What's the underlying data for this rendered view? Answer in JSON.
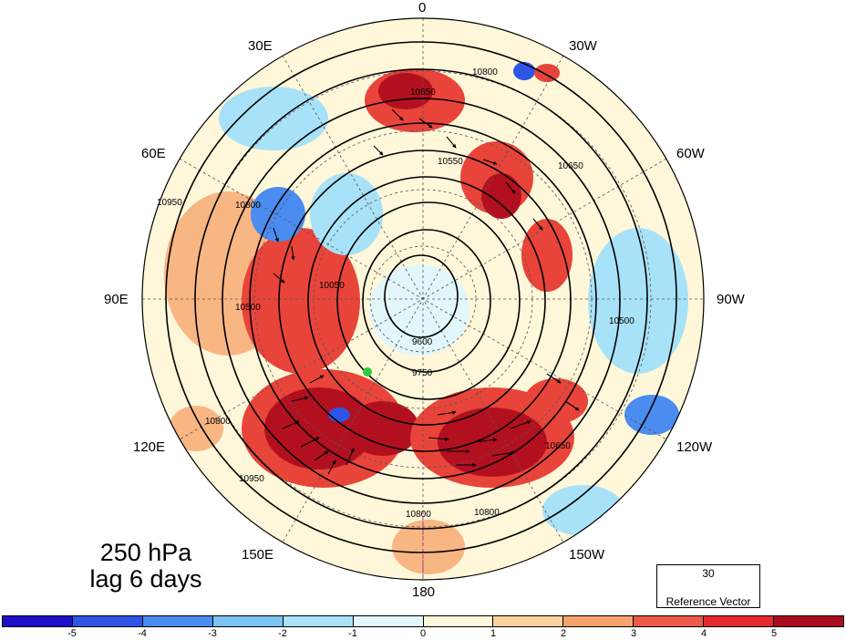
{
  "panel": {
    "title_line1": "250 hPa",
    "title_line2": "lag 6 days"
  },
  "longitude_labels": [
    {
      "id": "lon-0",
      "text": "0"
    },
    {
      "id": "lon-30e",
      "text": "30E"
    },
    {
      "id": "lon-30w",
      "text": "30W"
    },
    {
      "id": "lon-60e",
      "text": "60E"
    },
    {
      "id": "lon-60w",
      "text": "60W"
    },
    {
      "id": "lon-90e",
      "text": "90E"
    },
    {
      "id": "lon-90w",
      "text": "90W"
    },
    {
      "id": "lon-120e",
      "text": "120E"
    },
    {
      "id": "lon-120w",
      "text": "120W"
    },
    {
      "id": "lon-150e",
      "text": "150E"
    },
    {
      "id": "lon-150w",
      "text": "150W"
    },
    {
      "id": "lon-180",
      "text": "180"
    }
  ],
  "contour_labels": [
    "10800",
    "10650",
    "10550",
    "10950",
    "10800",
    "10050",
    "10500",
    "9600",
    "9750",
    "10650",
    "10800",
    "10800",
    "10650",
    "10950",
    "10800",
    "10500"
  ],
  "reference_vector": {
    "value": "30",
    "label": "Reference Vector"
  },
  "colorbar": {
    "colors": [
      "#1e0fc8",
      "#2f55e6",
      "#4a8cf0",
      "#7cc4f4",
      "#a8e2f8",
      "#e2f7fb",
      "#fff7d9",
      "#fcd29e",
      "#f6a46c",
      "#ee5a4a",
      "#e42a2e",
      "#a80c1e"
    ],
    "ticks": [
      "-5",
      "-4",
      "-3",
      "-2",
      "-1",
      "0",
      "1",
      "2",
      "3",
      "4",
      "5"
    ]
  },
  "colors": {
    "strong_positive": "#b3101f",
    "positive": "#e9443a",
    "weak_positive": "#f8b683",
    "neutral": "#fff7d9",
    "weak_negative": "#a8e2f8",
    "negative": "#4a8cf0",
    "strong_negative": "#1e0fc8",
    "marker": "#2ecc40"
  }
}
